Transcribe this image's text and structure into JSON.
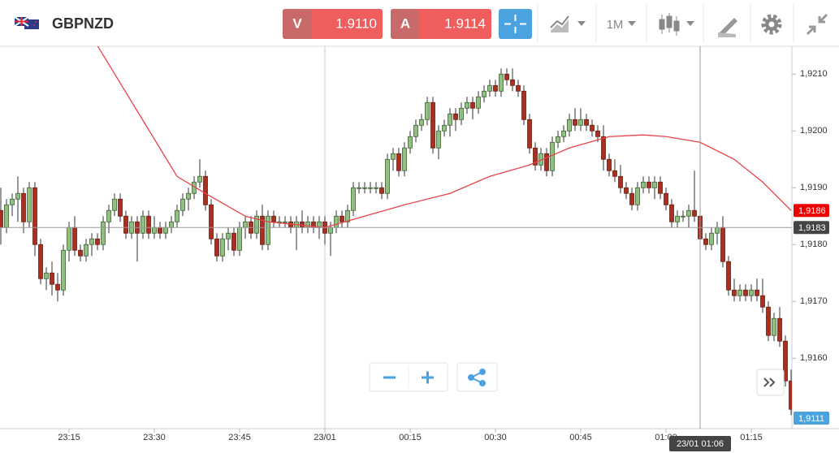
{
  "header": {
    "symbol": "GBPNZD",
    "sell": {
      "label": "V",
      "price": "1.9110"
    },
    "buy": {
      "label": "A",
      "price": "1.9114"
    },
    "timeframe": "1M"
  },
  "chart_data": {
    "type": "candlestick",
    "x": [
      "23:03",
      "23:04",
      "23:05",
      "23:06",
      "23:07",
      "23:08",
      "23:09",
      "23:10",
      "23:11",
      "23:12",
      "23:13",
      "23:14",
      "23:15",
      "23:16",
      "23:17",
      "23:18",
      "23:19",
      "23:20",
      "23:21",
      "23:22",
      "23:23",
      "23:24",
      "23:25",
      "23:26",
      "23:27",
      "23:28",
      "23:29",
      "23:30",
      "23:31",
      "23:32",
      "23:33",
      "23:34",
      "23:35",
      "23:36",
      "23:37",
      "23:38",
      "23:39",
      "23:40",
      "23:41",
      "23:42",
      "23:43",
      "23:44",
      "23:45",
      "23:46",
      "23:47",
      "23:48",
      "23:49",
      "23:50",
      "23:51",
      "23:52",
      "23:53",
      "23:54",
      "23:55",
      "23:56",
      "23:57",
      "23:58",
      "23:59",
      "00:00",
      "00:01",
      "00:02",
      "00:03",
      "00:04",
      "00:05",
      "00:06",
      "00:07",
      "00:08",
      "00:09",
      "00:10",
      "00:11",
      "00:12",
      "00:13",
      "00:14",
      "00:15",
      "00:16",
      "00:17",
      "00:18",
      "00:19",
      "00:20",
      "00:21",
      "00:22",
      "00:23",
      "00:24",
      "00:25",
      "00:26",
      "00:27",
      "00:28",
      "00:29",
      "00:30",
      "00:31",
      "00:32",
      "00:33",
      "00:34",
      "00:35",
      "00:36",
      "00:37",
      "00:38",
      "00:39",
      "00:40",
      "00:41",
      "00:42",
      "00:43",
      "00:44",
      "00:45",
      "00:46",
      "00:47",
      "00:48",
      "00:49",
      "00:50",
      "00:51",
      "00:52",
      "00:53",
      "00:54",
      "00:55",
      "00:56",
      "00:57",
      "00:58",
      "00:59",
      "01:00",
      "01:01",
      "01:02",
      "01:03",
      "01:04",
      "01:05",
      "01:06",
      "01:07",
      "01:08",
      "01:09",
      "01:10",
      "01:11",
      "01:12",
      "01:13",
      "01:14",
      "01:15",
      "01:16",
      "01:17",
      "01:18",
      "01:19",
      "01:20",
      "01:21",
      "01:22"
    ],
    "open": [
      1.9186,
      1.9183,
      1.9187,
      1.9188,
      1.9189,
      1.9184,
      1.919,
      1.918,
      1.9174,
      1.9175,
      1.9173,
      1.9172,
      1.9179,
      1.9183,
      1.9179,
      1.9178,
      1.918,
      1.9181,
      1.918,
      1.9184,
      1.9186,
      1.9188,
      1.9185,
      1.9182,
      1.9184,
      1.9182,
      1.9185,
      1.9182,
      1.9183,
      1.9182,
      1.9183,
      1.9184,
      1.9186,
      1.9188,
      1.9189,
      1.9191,
      1.9192,
      1.9187,
      1.9181,
      1.9178,
      1.9181,
      1.9182,
      1.9179,
      1.9183,
      1.9184,
      1.9182,
      1.9185,
      1.918,
      1.9185,
      1.9184,
      1.9184,
      1.9184,
      1.9183,
      1.9184,
      1.9183,
      1.9184,
      1.9183,
      1.9184,
      1.9182,
      1.9183,
      1.9185,
      1.9184,
      1.9186,
      1.919,
      1.919,
      1.919,
      1.919,
      1.919,
      1.9189,
      1.9195,
      1.9196,
      1.9193,
      1.9197,
      1.9199,
      1.9201,
      1.9202,
      1.9205,
      1.9197,
      1.92,
      1.9201,
      1.9203,
      1.9202,
      1.9204,
      1.9205,
      1.9204,
      1.9206,
      1.9207,
      1.9208,
      1.9207,
      1.921,
      1.9209,
      1.9208,
      1.9207,
      1.9202,
      1.9197,
      1.9194,
      1.9196,
      1.9193,
      1.9198,
      1.9199,
      1.92,
      1.9202,
      1.9201,
      1.9202,
      1.9201,
      1.92,
      1.9199,
      1.9195,
      1.9193,
      1.9192,
      1.919,
      1.9189,
      1.9187,
      1.919,
      1.9191,
      1.919,
      1.9191,
      1.9189,
      1.9187,
      1.9184,
      1.9185,
      1.9185,
      1.9186,
      1.9185,
      1.9181,
      1.918,
      1.9182,
      1.9183,
      1.9177,
      1.9172,
      1.9171,
      1.9172,
      1.9171,
      1.9172,
      1.9171,
      1.9169,
      1.9164,
      1.9167,
      1.9163,
      1.9156
    ],
    "high": [
      1.919,
      1.9188,
      1.9189,
      1.9192,
      1.919,
      1.9191,
      1.9191,
      1.9181,
      1.9176,
      1.9177,
      1.9175,
      1.918,
      1.9184,
      1.9185,
      1.918,
      1.9181,
      1.9182,
      1.9182,
      1.9185,
      1.9187,
      1.9189,
      1.9189,
      1.9186,
      1.9185,
      1.9185,
      1.9186,
      1.9186,
      1.9185,
      1.9184,
      1.9184,
      1.9185,
      1.9187,
      1.9189,
      1.919,
      1.9192,
      1.9195,
      1.9193,
      1.9188,
      1.9182,
      1.9182,
      1.9183,
      1.9183,
      1.9184,
      1.9185,
      1.9185,
      1.9186,
      1.9187,
      1.9186,
      1.9186,
      1.9185,
      1.9185,
      1.9185,
      1.9185,
      1.9186,
      1.9185,
      1.9185,
      1.9185,
      1.9185,
      1.9184,
      1.9186,
      1.9186,
      1.9187,
      1.9191,
      1.9191,
      1.9191,
      1.9191,
      1.9191,
      1.9191,
      1.9196,
      1.9197,
      1.9197,
      1.9198,
      1.92,
      1.9202,
      1.9203,
      1.9206,
      1.9206,
      1.9201,
      1.9202,
      1.9204,
      1.9204,
      1.9205,
      1.9206,
      1.9206,
      1.9207,
      1.9208,
      1.9209,
      1.9209,
      1.9211,
      1.9211,
      1.9211,
      1.9209,
      1.9208,
      1.9203,
      1.9198,
      1.9197,
      1.9197,
      1.9199,
      1.92,
      1.9201,
      1.9203,
      1.9204,
      1.9204,
      1.9203,
      1.9202,
      1.9201,
      1.9201,
      1.9196,
      1.9195,
      1.9194,
      1.9191,
      1.919,
      1.9191,
      1.9192,
      1.9192,
      1.9192,
      1.9192,
      1.919,
      1.9188,
      1.9186,
      1.9186,
      1.9187,
      1.9193,
      1.9186,
      1.9182,
      1.9183,
      1.9184,
      1.9185,
      1.9178,
      1.9174,
      1.9173,
      1.9173,
      1.9173,
      1.9174,
      1.9174,
      1.917,
      1.9168,
      1.9169,
      1.9164,
      1.9158
    ],
    "low": [
      1.918,
      1.9182,
      1.9185,
      1.9184,
      1.9182,
      1.9183,
      1.9178,
      1.9173,
      1.9172,
      1.9171,
      1.917,
      1.9171,
      1.9177,
      1.9178,
      1.9177,
      1.9177,
      1.9178,
      1.9179,
      1.9179,
      1.9182,
      1.9185,
      1.9184,
      1.9181,
      1.9181,
      1.9177,
      1.9181,
      1.9181,
      1.9181,
      1.9181,
      1.9181,
      1.9182,
      1.9183,
      1.9185,
      1.9186,
      1.9188,
      1.919,
      1.9186,
      1.918,
      1.9177,
      1.9177,
      1.9179,
      1.9178,
      1.9178,
      1.9181,
      1.9181,
      1.9181,
      1.9179,
      1.9179,
      1.9183,
      1.9183,
      1.9183,
      1.9182,
      1.9179,
      1.9182,
      1.9182,
      1.9182,
      1.9181,
      1.918,
      1.9178,
      1.9182,
      1.9183,
      1.9183,
      1.9185,
      1.9189,
      1.9189,
      1.9189,
      1.9189,
      1.9188,
      1.9188,
      1.9193,
      1.9192,
      1.9192,
      1.9196,
      1.9198,
      1.92,
      1.9201,
      1.9196,
      1.9195,
      1.9199,
      1.9199,
      1.92,
      1.9201,
      1.9203,
      1.9202,
      1.9203,
      1.9205,
      1.9206,
      1.9206,
      1.9206,
      1.9208,
      1.9207,
      1.9206,
      1.9201,
      1.9196,
      1.9193,
      1.9193,
      1.9192,
      1.9192,
      1.9197,
      1.9198,
      1.9199,
      1.92,
      1.92,
      1.92,
      1.9199,
      1.9198,
      1.9193,
      1.9192,
      1.9191,
      1.9189,
      1.9188,
      1.9186,
      1.9186,
      1.9189,
      1.9189,
      1.9188,
      1.9188,
      1.9186,
      1.9183,
      1.9183,
      1.9184,
      1.9183,
      1.9184,
      1.918,
      1.9179,
      1.9179,
      1.918,
      1.9176,
      1.9171,
      1.917,
      1.917,
      1.917,
      1.917,
      1.917,
      1.9168,
      1.9163,
      1.9163,
      1.9162,
      1.9155,
      1.915
    ],
    "close": [
      1.9183,
      1.9187,
      1.9188,
      1.9189,
      1.9184,
      1.919,
      1.918,
      1.9174,
      1.9175,
      1.9173,
      1.9172,
      1.9179,
      1.9183,
      1.9179,
      1.9178,
      1.918,
      1.9181,
      1.918,
      1.9184,
      1.9186,
      1.9188,
      1.9185,
      1.9182,
      1.9184,
      1.9182,
      1.9185,
      1.9182,
      1.9183,
      1.9182,
      1.9183,
      1.9184,
      1.9186,
      1.9188,
      1.9189,
      1.9191,
      1.9192,
      1.9187,
      1.9181,
      1.9178,
      1.9181,
      1.9182,
      1.9179,
      1.9183,
      1.9184,
      1.9182,
      1.9185,
      1.918,
      1.9185,
      1.9184,
      1.9184,
      1.9184,
      1.9183,
      1.9184,
      1.9183,
      1.9184,
      1.9183,
      1.9184,
      1.9182,
      1.9183,
      1.9185,
      1.9184,
      1.9186,
      1.919,
      1.919,
      1.919,
      1.919,
      1.919,
      1.9189,
      1.9195,
      1.9196,
      1.9193,
      1.9197,
      1.9199,
      1.9201,
      1.9202,
      1.9205,
      1.9197,
      1.92,
      1.9201,
      1.9203,
      1.9202,
      1.9204,
      1.9205,
      1.9204,
      1.9206,
      1.9207,
      1.9208,
      1.9207,
      1.921,
      1.9209,
      1.9208,
      1.9207,
      1.9202,
      1.9197,
      1.9194,
      1.9196,
      1.9193,
      1.9198,
      1.9199,
      1.92,
      1.9202,
      1.9201,
      1.9202,
      1.9201,
      1.92,
      1.9199,
      1.9195,
      1.9193,
      1.9192,
      1.919,
      1.9189,
      1.9187,
      1.919,
      1.9191,
      1.919,
      1.9191,
      1.9189,
      1.9187,
      1.9184,
      1.9185,
      1.9185,
      1.9186,
      1.9185,
      1.9181,
      1.918,
      1.9182,
      1.9183,
      1.9177,
      1.9172,
      1.9171,
      1.9172,
      1.9171,
      1.9172,
      1.9171,
      1.9169,
      1.9164,
      1.9167,
      1.9163,
      1.9156,
      1.9151
    ],
    "up_color": "#8fc07f",
    "down_color": "#a8301f",
    "ma": {
      "color": "#e8434b",
      "x": [
        "23:20",
        "23:34",
        "23:39",
        "23:46",
        "23:50",
        "00:00",
        "00:07",
        "00:14",
        "00:22",
        "00:29",
        "00:36",
        "00:43",
        "00:50",
        "00:56",
        "01:00",
        "01:06",
        "01:12",
        "01:17",
        "01:22"
      ],
      "values": [
        1.9215,
        1.9192,
        1.9189,
        1.9185,
        1.9184,
        1.9183,
        1.9185,
        1.9187,
        1.9189,
        1.9192,
        1.9194,
        1.9197,
        1.9199,
        1.91993,
        1.9199,
        1.9198,
        1.9195,
        1.9191,
        1.9186
      ],
      "last_label": "1,9186"
    },
    "ylim": [
      1.91476,
      1.92149
    ],
    "yticks": [
      {
        "value": 1.921,
        "label": "1,9210"
      },
      {
        "value": 1.92,
        "label": "1,9200"
      },
      {
        "value": 1.919,
        "label": "1,9190"
      },
      {
        "value": 1.918,
        "label": "1,9180"
      },
      {
        "value": 1.917,
        "label": "1,9170"
      },
      {
        "value": 1.916,
        "label": "1,9160"
      }
    ],
    "xticks": [
      "23:15",
      "23:30",
      "23:45",
      {
        "value": "00:00",
        "label": "23/01"
      },
      "00:15",
      "00:30",
      "00:45",
      "01:00",
      "01:15"
    ],
    "crosshair": {
      "x": "01:06",
      "y": 1.9183,
      "x_label": "23/01 01:06",
      "y_label": "1,9183"
    },
    "price_marker": "1,9111"
  }
}
